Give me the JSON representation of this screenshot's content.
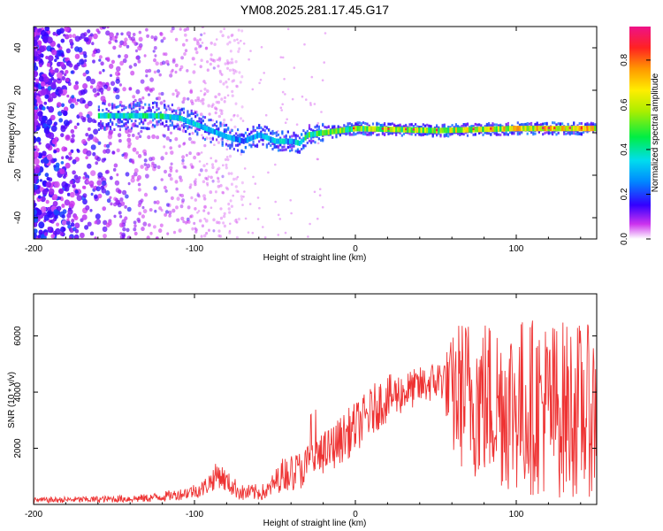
{
  "title": "YM08.2025.281.17.45.G17",
  "chart_data": [
    {
      "type": "heatmap",
      "xlabel": "Height of straight line (km)",
      "ylabel": "Frequency (Hz)",
      "xlim": [
        -200,
        150
      ],
      "ylim": [
        -50,
        50
      ],
      "xticks": [
        -200,
        -100,
        0,
        100
      ],
      "yticks": [
        -40,
        -20,
        0,
        20,
        40
      ],
      "colorbar": {
        "label": "Normalized spectral amplitude",
        "ticks": [
          "0.0",
          "0.2",
          "0.4",
          "0.6",
          "0.8"
        ],
        "range": [
          0,
          0.95
        ]
      },
      "ridge": {
        "x": [
          -125,
          -110,
          -100,
          -90,
          -80,
          -70,
          -60,
          -50,
          -40,
          -35,
          -30,
          -20,
          -10,
          0,
          50,
          100,
          150
        ],
        "center_freq": [
          8,
          7,
          4,
          1,
          -2,
          -4,
          -1,
          -4,
          -4,
          -5,
          -1,
          0,
          1,
          2,
          1,
          2,
          2
        ],
        "amplitude": [
          0.4,
          0.4,
          0.35,
          0.3,
          0.3,
          0.25,
          0.3,
          0.35,
          0.3,
          0.35,
          0.45,
          0.5,
          0.5,
          0.55,
          0.6,
          0.65,
          0.7
        ]
      }
    },
    {
      "type": "line",
      "xlabel": "Height of straight line (km)",
      "ylabel": "SNR (10 * v/v)",
      "xlim": [
        -200,
        150
      ],
      "ylim": [
        0,
        7500
      ],
      "xticks": [
        -200,
        -100,
        0,
        100
      ],
      "yticks": [
        2000,
        4000,
        6000
      ],
      "color": "#ee3333",
      "envelope": {
        "x": [
          -200,
          -160,
          -130,
          -110,
          -95,
          -85,
          -80,
          -70,
          -55,
          -45,
          -35,
          -25,
          -15,
          -5,
          5,
          15,
          25,
          35,
          45,
          55,
          60,
          65,
          75,
          85,
          95,
          105,
          115,
          125,
          135,
          150
        ],
        "mean": [
          150,
          180,
          220,
          350,
          550,
          1100,
          800,
          400,
          450,
          1100,
          1200,
          1600,
          2000,
          2500,
          3000,
          3600,
          3900,
          4100,
          4300,
          4500,
          3800,
          4000,
          3800,
          3700,
          3600,
          3500,
          3500,
          3400,
          3400,
          3300
        ],
        "spread": [
          100,
          120,
          150,
          200,
          300,
          500,
          400,
          300,
          300,
          600,
          700,
          800,
          800,
          900,
          900,
          900,
          800,
          700,
          700,
          800,
          2200,
          2700,
          3000,
          3000,
          3200,
          3200,
          3200,
          3200,
          3200,
          3000
        ]
      }
    }
  ]
}
